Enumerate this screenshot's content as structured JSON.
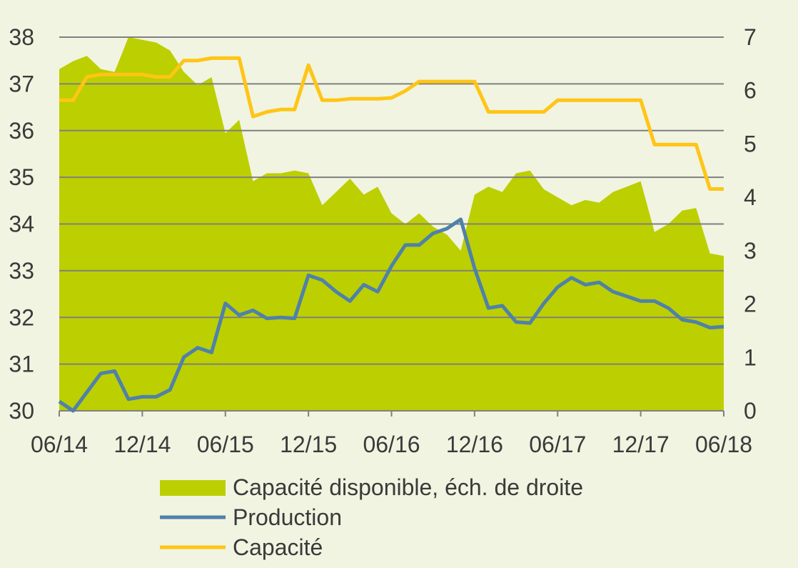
{
  "chart_data": {
    "type": "line",
    "x_ticks": [
      "06/14",
      "12/14",
      "06/15",
      "12/15",
      "06/16",
      "12/16",
      "06/17",
      "12/17",
      "06/18"
    ],
    "x_range": [
      "2014-06",
      "2018-06"
    ],
    "y_left": {
      "min": 30,
      "max": 38,
      "ticks": [
        30,
        31,
        32,
        33,
        34,
        35,
        36,
        37,
        38
      ]
    },
    "y_right": {
      "min": 0,
      "max": 7,
      "ticks": [
        0,
        1,
        2,
        3,
        4,
        5,
        6,
        7
      ]
    },
    "grid": "horizontal",
    "legend_position": "bottom",
    "colors": {
      "background": "#f1f4e1",
      "area": "#bccf00",
      "production": "#4f81aa",
      "capacite": "#ffc516",
      "grid": "#808080"
    },
    "series": [
      {
        "name": "Capacité disponible, éch. de droite",
        "kind": "area",
        "axis": "right",
        "x": [
          0,
          1,
          2,
          3,
          4,
          5,
          6,
          7,
          8,
          9,
          10,
          11,
          12,
          13,
          14,
          15,
          16,
          17,
          18,
          19,
          20,
          21,
          22,
          23,
          24,
          25,
          26,
          27,
          28,
          29,
          30,
          31,
          32,
          33,
          34,
          35,
          36,
          37,
          38,
          39,
          40,
          41,
          42,
          43,
          44,
          45,
          46,
          47,
          48
        ],
        "values": [
          6.4,
          6.55,
          6.65,
          6.4,
          6.35,
          7.0,
          6.95,
          6.9,
          6.75,
          6.35,
          6.1,
          6.25,
          5.2,
          5.45,
          4.3,
          4.45,
          4.45,
          4.5,
          4.45,
          3.85,
          4.1,
          4.35,
          4.05,
          4.2,
          3.7,
          3.5,
          3.7,
          3.45,
          3.3,
          3.0,
          4.05,
          4.2,
          4.1,
          4.45,
          4.5,
          4.15,
          4.0,
          3.85,
          3.95,
          3.9,
          4.1,
          4.2,
          4.3,
          3.35,
          3.5,
          3.75,
          3.8,
          2.95,
          2.9
        ]
      },
      {
        "name": "Production",
        "kind": "line",
        "axis": "left",
        "x": [
          0,
          1,
          2,
          3,
          4,
          5,
          6,
          7,
          8,
          9,
          10,
          11,
          12,
          13,
          14,
          15,
          16,
          17,
          18,
          19,
          20,
          21,
          22,
          23,
          24,
          25,
          26,
          27,
          28,
          29,
          30,
          31,
          32,
          33,
          34,
          35,
          36,
          37,
          38,
          39,
          40,
          41,
          42,
          43,
          44,
          45,
          46,
          47,
          48
        ],
        "values": [
          30.2,
          30.0,
          30.4,
          30.8,
          30.85,
          30.25,
          30.3,
          30.3,
          30.45,
          31.15,
          31.35,
          31.25,
          32.3,
          32.05,
          32.15,
          31.98,
          32.0,
          31.98,
          32.9,
          32.8,
          32.55,
          32.35,
          32.7,
          32.55,
          33.1,
          33.55,
          33.55,
          33.8,
          33.9,
          34.1,
          33.05,
          32.2,
          32.25,
          31.9,
          31.88,
          32.3,
          32.65,
          32.85,
          32.7,
          32.75,
          32.55,
          32.45,
          32.35,
          32.35,
          32.2,
          31.95,
          31.9,
          31.78,
          31.8
        ]
      },
      {
        "name": "Capacité",
        "kind": "line",
        "axis": "left",
        "x": [
          0,
          1,
          2,
          3,
          4,
          5,
          6,
          7,
          8,
          9,
          10,
          11,
          12,
          13,
          14,
          15,
          16,
          17,
          18,
          19,
          20,
          21,
          22,
          23,
          24,
          25,
          26,
          27,
          28,
          29,
          30,
          31,
          32,
          33,
          34,
          35,
          36,
          37,
          38,
          39,
          40,
          41,
          42,
          43,
          44,
          45,
          46,
          47,
          48
        ],
        "values": [
          36.65,
          36.65,
          37.15,
          37.2,
          37.2,
          37.2,
          37.2,
          37.15,
          37.15,
          37.5,
          37.5,
          37.55,
          37.55,
          37.55,
          36.3,
          36.4,
          36.45,
          36.45,
          37.4,
          36.65,
          36.65,
          36.68,
          36.68,
          36.68,
          36.7,
          36.85,
          37.05,
          37.05,
          37.05,
          37.05,
          37.05,
          36.4,
          36.4,
          36.4,
          36.4,
          36.4,
          36.65,
          36.65,
          36.65,
          36.65,
          36.65,
          36.65,
          36.65,
          35.7,
          35.7,
          35.7,
          35.7,
          34.75,
          34.75
        ]
      }
    ]
  }
}
